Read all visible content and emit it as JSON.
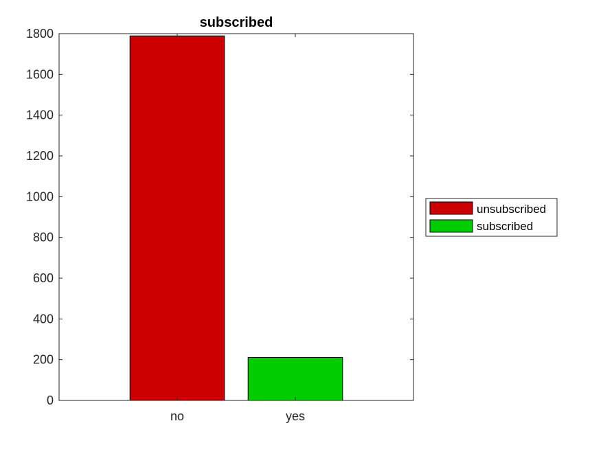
{
  "chart_data": {
    "type": "bar",
    "title": "subscribed",
    "xlabel": "",
    "ylabel": "",
    "categories": [
      "no",
      "yes"
    ],
    "values": [
      1789,
      211
    ],
    "bar_colors": [
      "#cc0000",
      "#00cc00"
    ],
    "ylim": [
      0,
      1800
    ],
    "yticks": [
      0,
      200,
      400,
      600,
      800,
      1000,
      1200,
      1400,
      1600,
      1800
    ],
    "grid": false,
    "legend": {
      "placement": "right",
      "entries": [
        {
          "label": "unsubscribed",
          "color": "#cc0000"
        },
        {
          "label": "subscribed",
          "color": "#00cc00"
        }
      ]
    }
  }
}
